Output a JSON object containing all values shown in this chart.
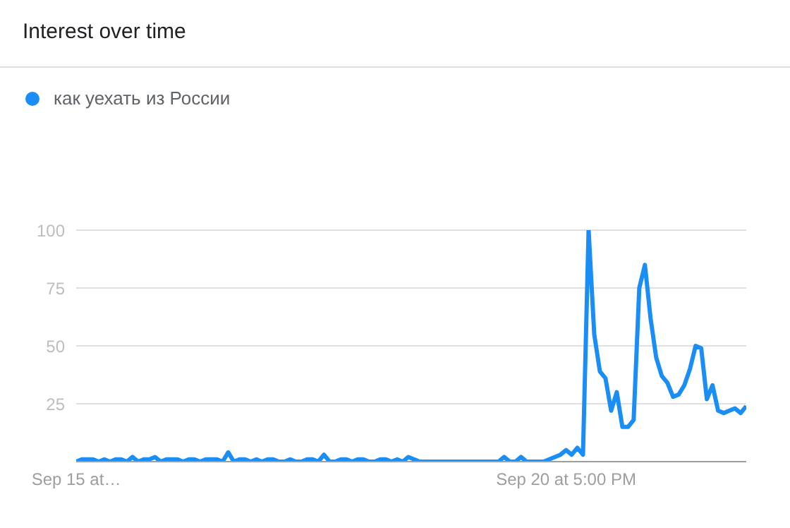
{
  "chart_data": {
    "type": "line",
    "title": "Interest over time",
    "categories": [
      "Sep 15 at…",
      null,
      null,
      null,
      null,
      null,
      null,
      null,
      null,
      null,
      null,
      null,
      null,
      null,
      null,
      null,
      null,
      null,
      null,
      null,
      null,
      null,
      null,
      null,
      null,
      null,
      null,
      null,
      null,
      null,
      null,
      null,
      null,
      null,
      null,
      null,
      null,
      null,
      null,
      null,
      null,
      null,
      null,
      null,
      null,
      null,
      null,
      null,
      null,
      null,
      null,
      null,
      null,
      null,
      null,
      null,
      null,
      null,
      null,
      null,
      null,
      null,
      null,
      null,
      null,
      null,
      null,
      null,
      null,
      null,
      null,
      null,
      null,
      null,
      null,
      null,
      null,
      null,
      null,
      null,
      null,
      null,
      null,
      null,
      null,
      null,
      null,
      "Sep 20 at 5:00 PM",
      null,
      null,
      null,
      null,
      null,
      null,
      null,
      null,
      null,
      null,
      null,
      null,
      null,
      null,
      null,
      null,
      null,
      null,
      null,
      null,
      null,
      null,
      null,
      null,
      null,
      null,
      null,
      null,
      null,
      null,
      null,
      null
    ],
    "series": [
      {
        "name": "как уехать из России",
        "color": "#1a8ef5",
        "values": [
          0,
          1,
          1,
          1,
          0,
          1,
          0,
          1,
          1,
          0,
          2,
          0,
          1,
          1,
          2,
          0,
          1,
          1,
          1,
          0,
          1,
          1,
          0,
          1,
          1,
          1,
          0,
          4,
          0,
          1,
          1,
          0,
          1,
          0,
          1,
          1,
          0,
          0,
          1,
          0,
          0,
          1,
          1,
          0,
          3,
          0,
          0,
          1,
          1,
          0,
          1,
          1,
          0,
          0,
          1,
          1,
          0,
          1,
          0,
          2,
          1,
          0,
          0,
          0,
          0,
          0,
          0,
          0,
          0,
          0,
          0,
          0,
          0,
          0,
          0,
          0,
          2,
          0,
          0,
          2,
          0,
          0,
          0,
          0,
          1,
          2,
          3,
          5,
          3,
          6,
          3,
          100,
          55,
          39,
          36,
          22,
          30,
          15,
          15,
          18,
          75,
          85,
          62,
          45,
          37,
          34,
          28,
          29,
          33,
          40,
          50,
          49,
          27,
          33,
          22,
          21,
          22,
          23,
          21,
          24
        ]
      }
    ],
    "ylim": [
      0,
      100
    ],
    "yticks": [
      25,
      50,
      75,
      100
    ],
    "grid": "y",
    "legend": "top left",
    "marker": "none",
    "line_style": "solid"
  }
}
